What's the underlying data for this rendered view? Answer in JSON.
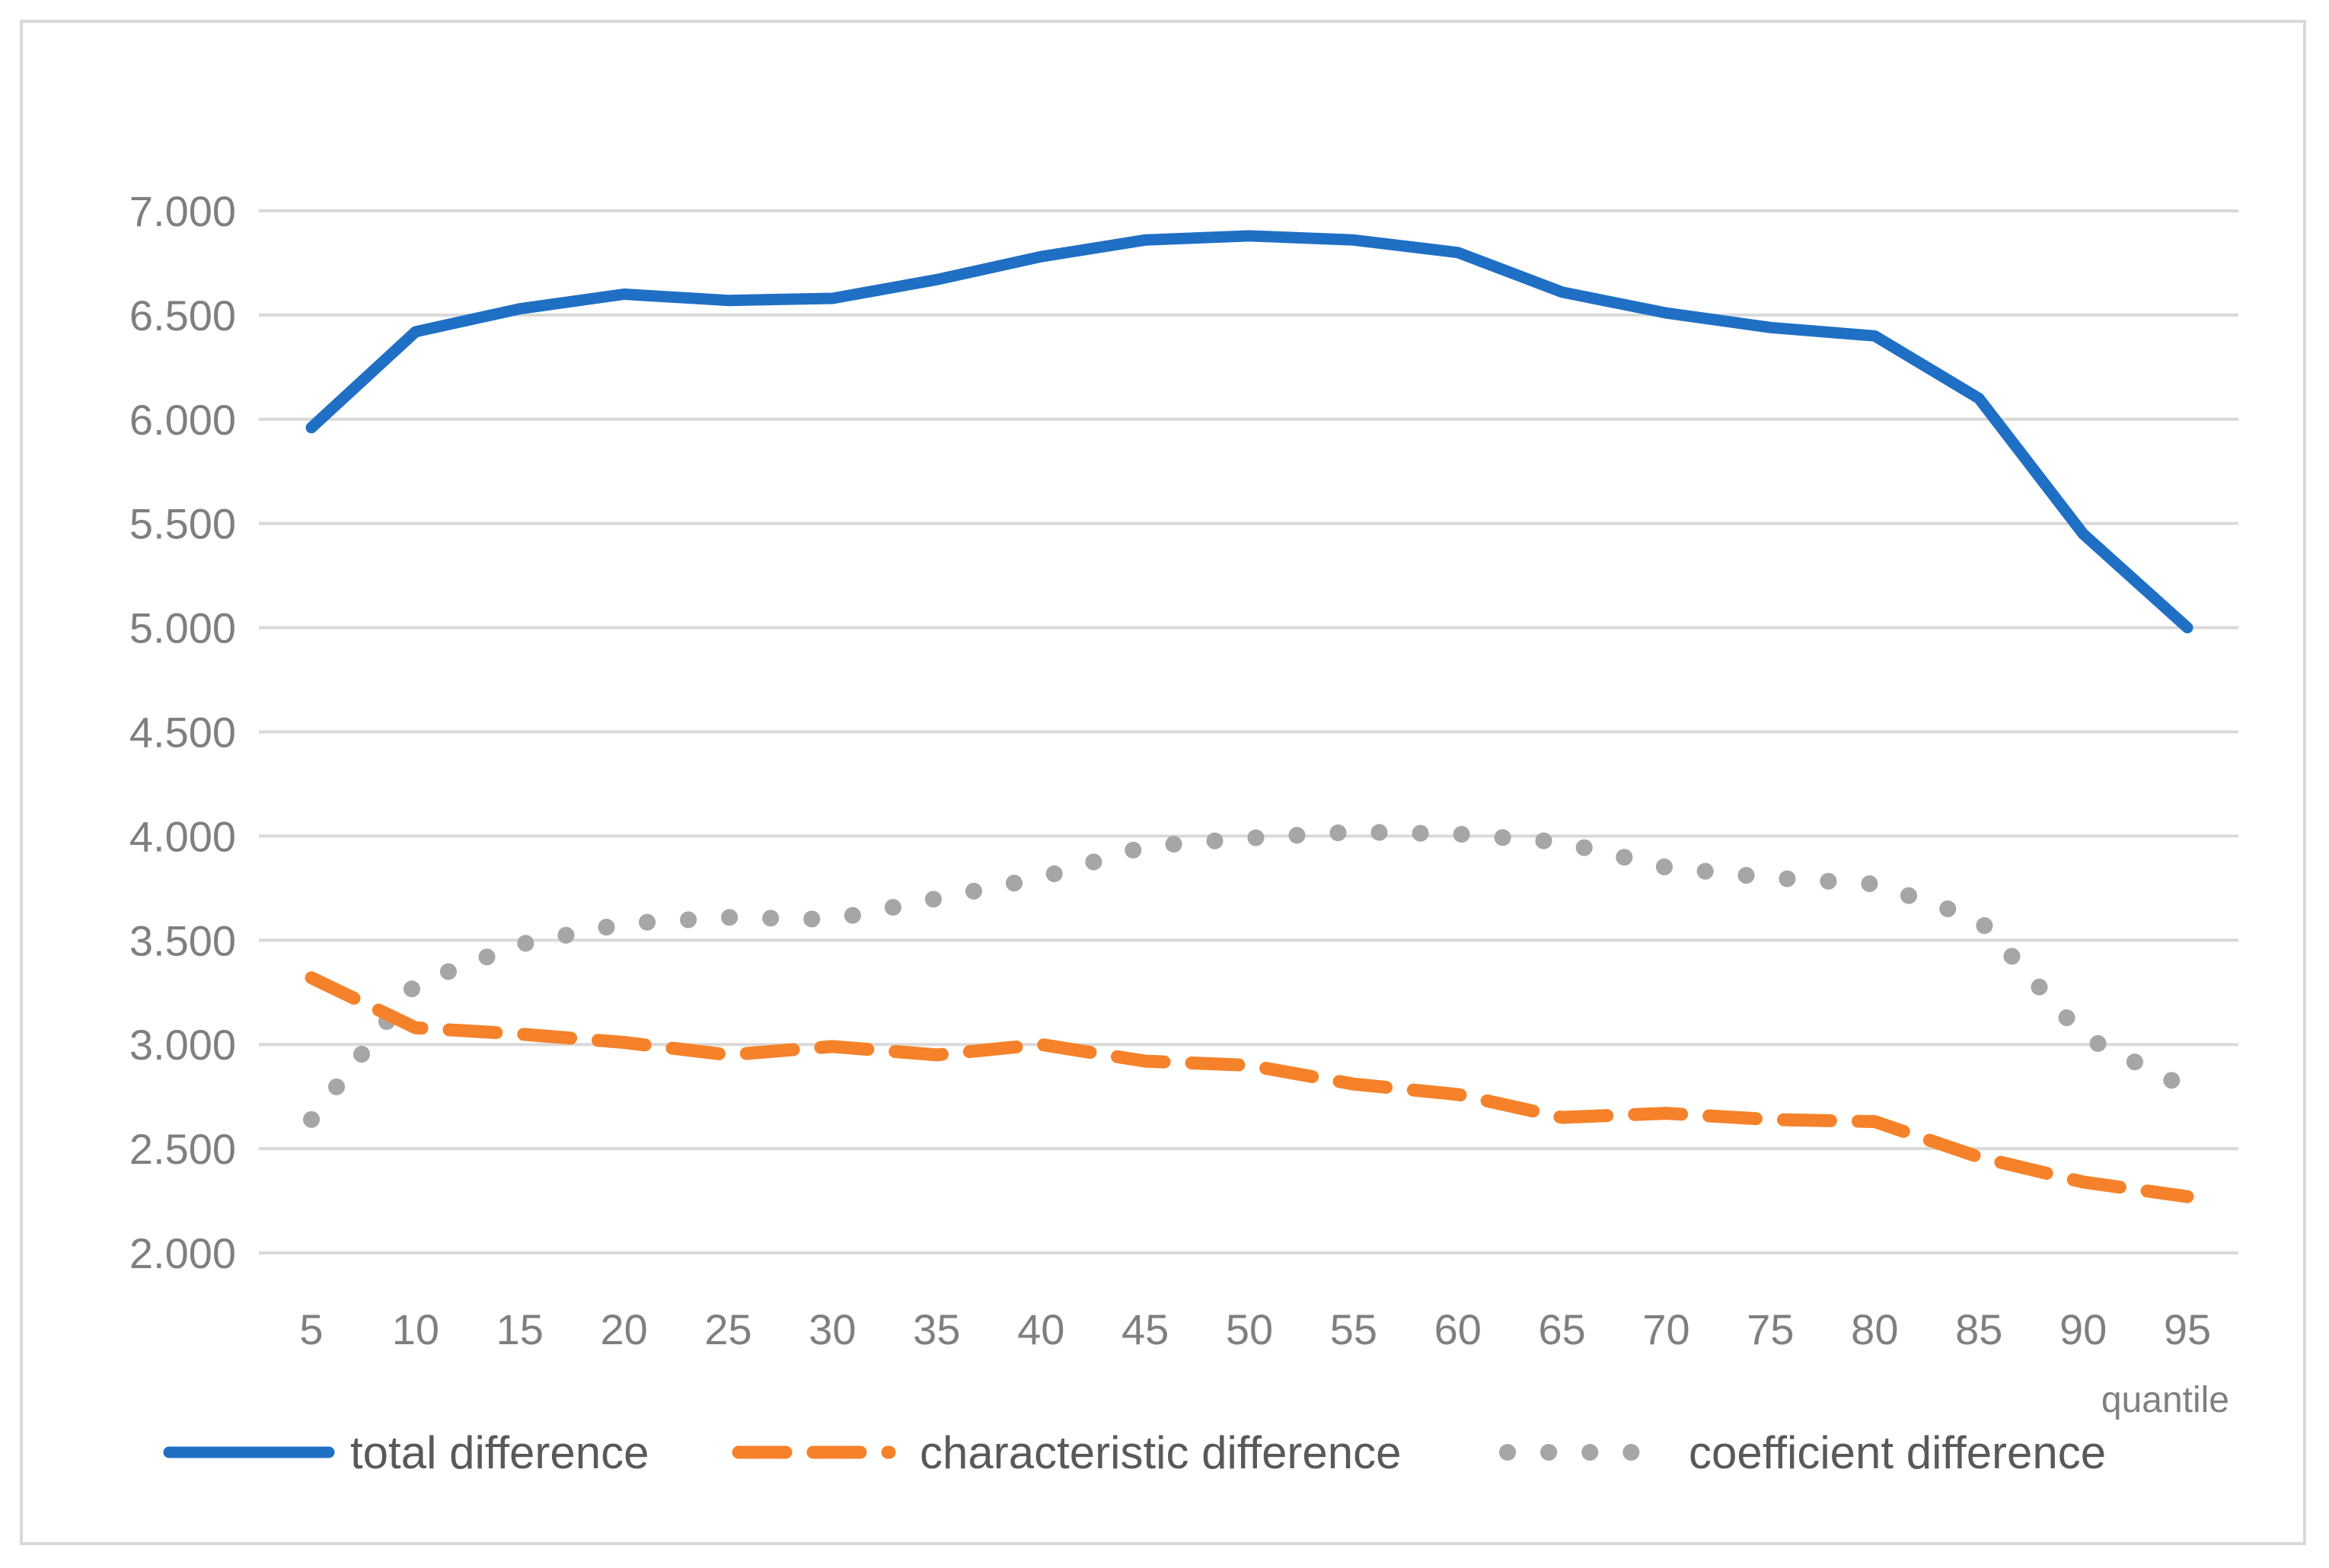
{
  "chart_data": {
    "type": "line",
    "title": "",
    "xlabel": "quantile",
    "ylabel": "",
    "x": [
      5,
      10,
      15,
      20,
      25,
      30,
      35,
      40,
      45,
      50,
      55,
      60,
      65,
      70,
      75,
      80,
      85,
      90,
      95
    ],
    "ylim": [
      2000,
      7000
    ],
    "yticks": [
      2000,
      2500,
      3000,
      3500,
      4000,
      4500,
      5000,
      5500,
      6000,
      6500,
      7000
    ],
    "ytick_labels": [
      "2.000",
      "2.500",
      "3.000",
      "3.500",
      "4.000",
      "4.500",
      "5.000",
      "5.500",
      "6.000",
      "6.500",
      "7.000"
    ],
    "grid": true,
    "legend_position": "bottom",
    "series": [
      {
        "name": "total difference",
        "style": "solid",
        "color": "#1f6fc5",
        "values": [
          5960,
          6420,
          6530,
          6600,
          6570,
          6580,
          6670,
          6780,
          6860,
          6880,
          6860,
          6800,
          6610,
          6510,
          6440,
          6400,
          6100,
          5450,
          5000
        ]
      },
      {
        "name": "characteristic difference",
        "style": "dashed",
        "color": "#f5822a",
        "values": [
          3320,
          3080,
          3050,
          3010,
          2950,
          2990,
          2950,
          3000,
          2920,
          2900,
          2810,
          2760,
          2650,
          2670,
          2640,
          2630,
          2460,
          2340,
          2270
        ]
      },
      {
        "name": "coefficient difference",
        "style": "dotted",
        "color": "#a6a6a6",
        "values": [
          2640,
          3290,
          3480,
          3580,
          3610,
          3600,
          3700,
          3800,
          3950,
          3990,
          4020,
          4010,
          3970,
          3850,
          3800,
          3770,
          3600,
          3040,
          2790
        ]
      }
    ]
  }
}
